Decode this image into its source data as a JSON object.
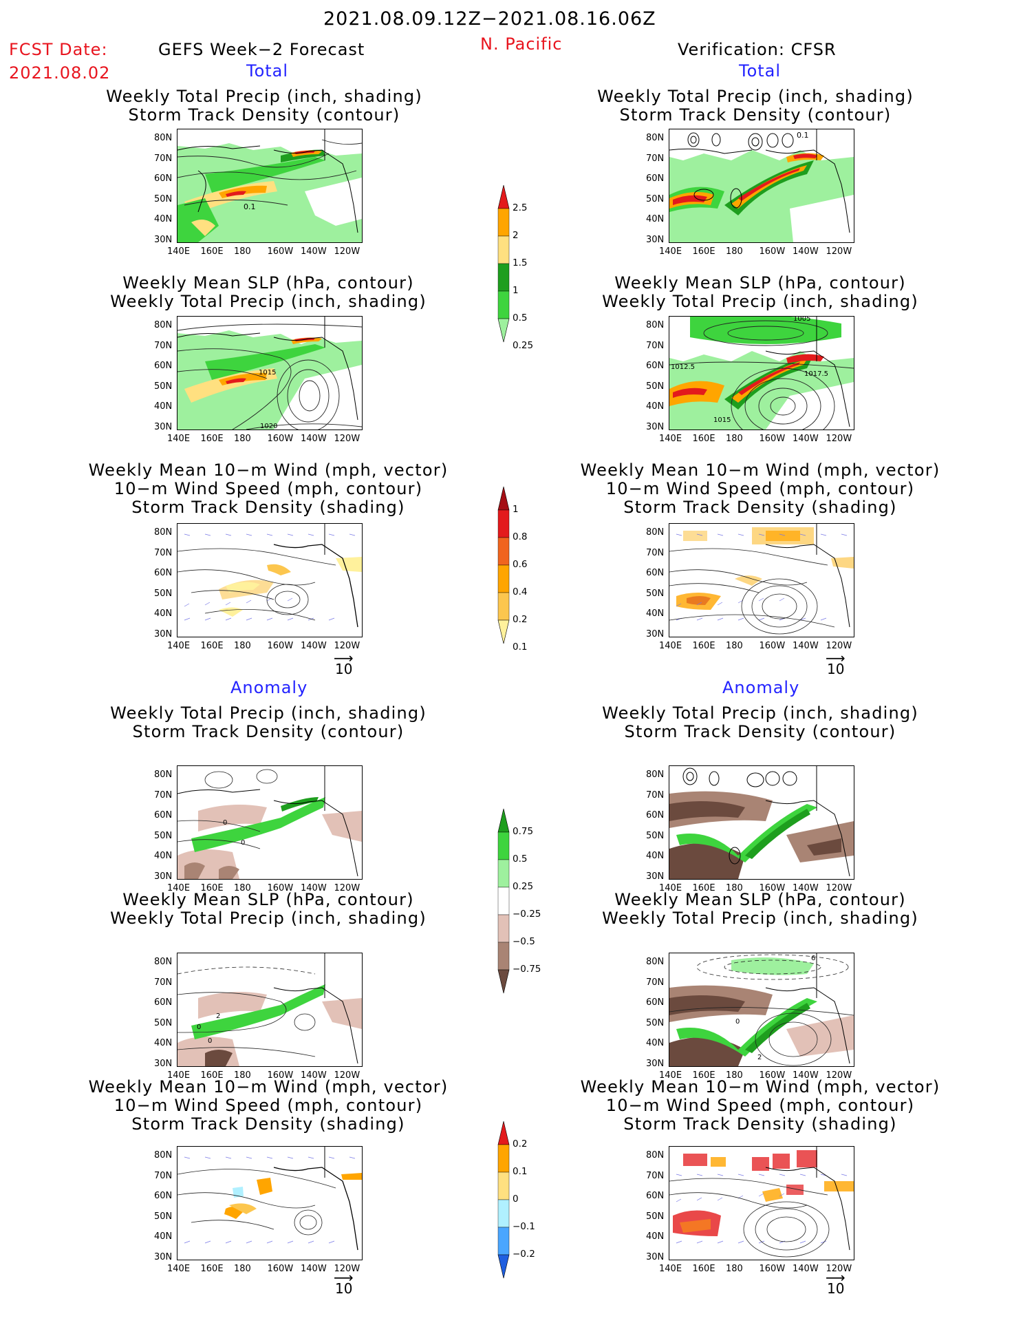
{
  "header": {
    "period": "2021.08.09.12Z−2021.08.16.06Z",
    "fcst_label": "FCST Date:",
    "fcst_date": "2021.08.02",
    "product": "GEFS Week−2 Forecast",
    "region": "N. Pacific",
    "verification": "Verification: CFSR"
  },
  "sections": {
    "total": "Total",
    "anomaly": "Anomaly"
  },
  "captions": {
    "precip_storm": [
      "Weekly Total Precip (inch, shading)",
      "Storm Track Density (contour)"
    ],
    "slp_precip": [
      "Weekly Mean SLP (hPa, contour)",
      "Weekly Total Precip (inch, shading)"
    ],
    "wind": [
      "Weekly Mean 10−m Wind (mph, vector)",
      "10−m Wind Speed (mph, contour)",
      "Storm Track Density (shading)"
    ]
  },
  "axes": {
    "lat_labels": [
      "80N",
      "70N",
      "60N",
      "50N",
      "40N",
      "30N"
    ],
    "lon_labels": [
      "140E",
      "160E",
      "180",
      "160W",
      "140W",
      "120W"
    ]
  },
  "vector_reference": "10",
  "contour_labels": {
    "fcst_total_precip": [
      "0.1"
    ],
    "fcst_total_slp": [
      "1015",
      "1020"
    ],
    "obs_total_precip": [
      "0.1"
    ],
    "obs_total_slp": [
      "1005",
      "1012.5",
      "1017.5",
      "1015"
    ],
    "fcst_anom_precip": [
      "0",
      "0"
    ],
    "fcst_anom_slp": [
      "2",
      "0",
      "0"
    ],
    "obs_anom_slp": [
      "6",
      "0",
      "2"
    ]
  },
  "colorbars": {
    "total_precip": {
      "labels": [
        "2.5",
        "2",
        "1.5",
        "1",
        "0.5",
        "0.25"
      ],
      "colors": [
        "#e31a1c",
        "#ffa500",
        "#ffe080",
        "#1e9e1e",
        "#3ed43e",
        "#9ef09e"
      ]
    },
    "total_storm": {
      "labels": [
        "1",
        "0.8",
        "0.6",
        "0.4",
        "0.2",
        "0.1"
      ],
      "colors": [
        "#a50f15",
        "#e31a1c",
        "#f0641e",
        "#ffa500",
        "#fcc64e",
        "#fff19c"
      ]
    },
    "anomaly_precip": {
      "labels": [
        "0.75",
        "0.5",
        "0.25",
        "−0.25",
        "−0.5",
        "−0.75"
      ],
      "colors": [
        "#1e9e1e",
        "#3ed43e",
        "#9ef09e",
        "#ffffff",
        "#e2c1b7",
        "#a98474",
        "#6b4a3e"
      ]
    },
    "anomaly_storm": {
      "labels": [
        "0.2",
        "0.1",
        "0",
        "−0.1",
        "−0.2"
      ],
      "colors": [
        "#e31a1c",
        "#ffa500",
        "#ffe080",
        "#b0f0ff",
        "#4aa6ff",
        "#1f5fe0"
      ]
    }
  }
}
